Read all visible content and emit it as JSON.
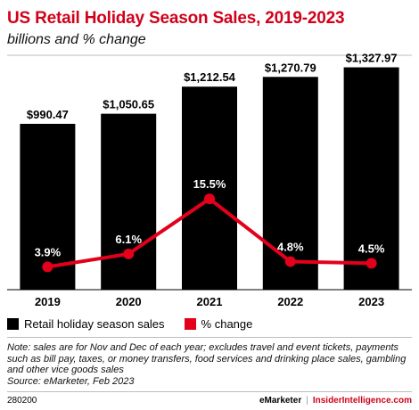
{
  "header": {
    "title": "US Retail Holiday Season Sales, 2019-2023",
    "subtitle": "billions and % change"
  },
  "chart_data": {
    "type": "bar",
    "categories": [
      "2019",
      "2020",
      "2021",
      "2022",
      "2023"
    ],
    "series": [
      {
        "name": "Retail holiday season sales",
        "type": "bar",
        "values": [
          990.47,
          1050.65,
          1212.54,
          1270.79,
          1327.97
        ],
        "labels": [
          "$990.47",
          "$1,050.65",
          "$1,212.54",
          "$1,270.79",
          "$1,327.97"
        ],
        "color": "#000000"
      },
      {
        "name": "% change",
        "type": "line",
        "values": [
          3.9,
          6.1,
          15.5,
          4.8,
          4.5
        ],
        "labels": [
          "3.9%",
          "6.1%",
          "15.5%",
          "4.8%",
          "4.5%"
        ],
        "color": "#e3001b"
      }
    ],
    "bar_ylim": [
      0,
      1400
    ],
    "line_ylim": [
      0,
      40
    ],
    "legend_position": "bottom-left",
    "grid": false
  },
  "legend": {
    "bars_label": "Retail holiday season sales",
    "line_label": "% change"
  },
  "note": "Note: sales are for Nov and Dec of each year; excludes travel and event tickets, payments such as bill pay, taxes, or money transfers, food services and drinking place sales, gambling and other vice goods sales",
  "source": "Source: eMarketer, Feb 2023",
  "footer": {
    "id": "280200",
    "brand": "eMarketer",
    "separator": "|",
    "site": "InsiderIntelligence.com"
  },
  "colors": {
    "accent": "#d0021b",
    "bar": "#000000",
    "line": "#e3001b"
  }
}
